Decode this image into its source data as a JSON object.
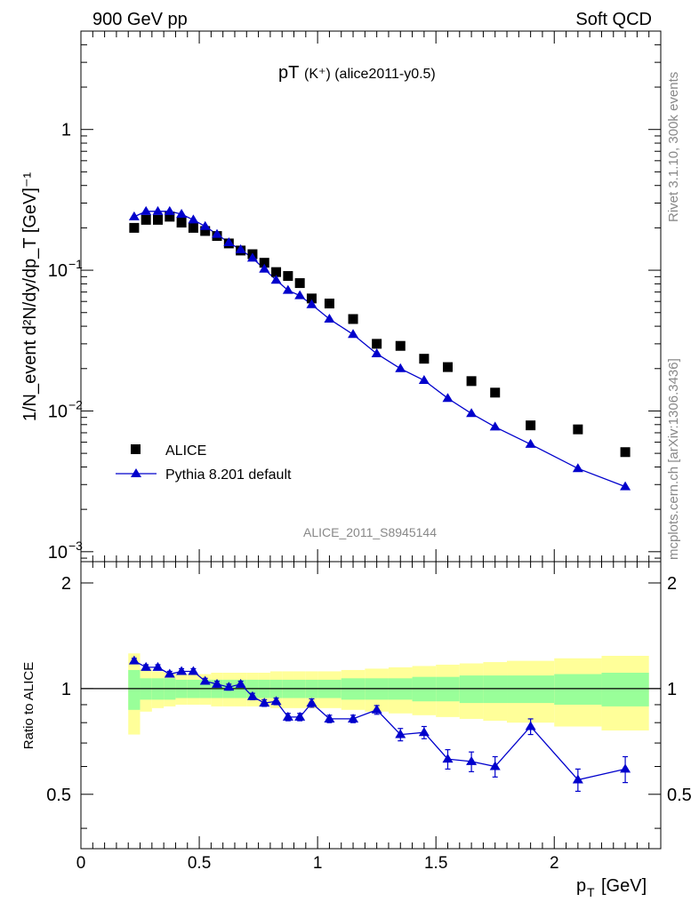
{
  "header": {
    "left": "900 GeV pp",
    "right": "Soft QCD"
  },
  "side_labels": {
    "rivet": "Rivet 3.1.10,  300k events",
    "mcplots": "mcplots.cern.ch [arXiv:1306.3436]"
  },
  "chart_data": [
    {
      "type": "scatter",
      "title_main": "pT",
      "title_sub": "(K⁺) (alice2011-y0.5)",
      "analysis_tag": "ALICE_2011_S8945144",
      "ylabel": "1/N_event d²N/dy/dp_T [GeV]⁻¹",
      "yscale": "log",
      "ylim": [
        0.00085,
        5.0
      ],
      "xlim": [
        0,
        2.45
      ],
      "yticks": [
        {
          "value": 0.001,
          "base": "10",
          "exp": "−3"
        },
        {
          "value": 0.01,
          "base": "10",
          "exp": "−2"
        },
        {
          "value": 0.1,
          "base": "10",
          "exp": "−1"
        },
        {
          "value": 1,
          "base": "1",
          "exp": ""
        }
      ],
      "legend": {
        "placement": "bottom-left",
        "entries": [
          {
            "label": "ALICE",
            "marker": "square",
            "color": "#000000"
          },
          {
            "label": "Pythia 8.201 default",
            "marker": "triangle-line",
            "color": "#0000cc"
          }
        ]
      },
      "series": [
        {
          "name": "ALICE",
          "x": [
            0.225,
            0.275,
            0.325,
            0.375,
            0.425,
            0.475,
            0.525,
            0.575,
            0.625,
            0.675,
            0.725,
            0.775,
            0.825,
            0.875,
            0.925,
            0.975,
            1.05,
            1.15,
            1.25,
            1.35,
            1.45,
            1.55,
            1.65,
            1.75,
            1.9,
            2.1,
            2.3
          ],
          "y": [
            0.2,
            0.228,
            0.228,
            0.24,
            0.218,
            0.2,
            0.19,
            0.175,
            0.155,
            0.138,
            0.13,
            0.113,
            0.097,
            0.091,
            0.081,
            0.063,
            0.058,
            0.045,
            0.03,
            0.029,
            0.0235,
            0.0205,
            0.0163,
            0.0135,
            0.0079,
            0.0074,
            0.0051
          ]
        },
        {
          "name": "Pythia 8.201 default",
          "x": [
            0.225,
            0.275,
            0.325,
            0.375,
            0.425,
            0.475,
            0.525,
            0.575,
            0.625,
            0.675,
            0.725,
            0.775,
            0.825,
            0.875,
            0.925,
            0.975,
            1.05,
            1.15,
            1.25,
            1.35,
            1.45,
            1.55,
            1.65,
            1.75,
            1.9,
            2.1,
            2.3
          ],
          "y": [
            0.24,
            0.262,
            0.262,
            0.262,
            0.25,
            0.228,
            0.205,
            0.18,
            0.157,
            0.14,
            0.122,
            0.102,
            0.085,
            0.072,
            0.066,
            0.057,
            0.045,
            0.035,
            0.0255,
            0.02,
            0.0165,
            0.0123,
            0.0096,
            0.0077,
            0.0058,
            0.0039,
            0.0029
          ]
        }
      ]
    },
    {
      "type": "line",
      "ylabel": "Ratio to ALICE",
      "xlabel_main": "p",
      "xlabel_sub": "T",
      "xlabel_unit": "[GeV]",
      "xlim": [
        0,
        2.45
      ],
      "ylim": [
        0.35,
        2.3
      ],
      "xticks": [
        {
          "value": 0,
          "label": "0"
        },
        {
          "value": 0.5,
          "label": "0.5"
        },
        {
          "value": 1,
          "label": "1"
        },
        {
          "value": 1.5,
          "label": "1.5"
        },
        {
          "value": 2,
          "label": "2"
        }
      ],
      "yticks": [
        {
          "value": 0.5,
          "label": "0.5"
        },
        {
          "value": 1,
          "label": "1"
        },
        {
          "value": 2,
          "label": "2"
        }
      ],
      "reference_line": 1,
      "bands": {
        "bin_edges": [
          0.2,
          0.25,
          0.3,
          0.35,
          0.4,
          0.45,
          0.5,
          0.55,
          0.6,
          0.65,
          0.7,
          0.75,
          0.8,
          0.85,
          0.9,
          0.95,
          1.0,
          1.1,
          1.2,
          1.3,
          1.4,
          1.5,
          1.6,
          1.7,
          1.8,
          2.0,
          2.2,
          2.4
        ],
        "inner_color": "#99ff99",
        "outer_color": "#ffff99",
        "inner_halfwidth": [
          0.13,
          0.07,
          0.07,
          0.07,
          0.06,
          0.06,
          0.06,
          0.06,
          0.06,
          0.06,
          0.06,
          0.06,
          0.06,
          0.06,
          0.06,
          0.06,
          0.06,
          0.07,
          0.07,
          0.07,
          0.08,
          0.08,
          0.09,
          0.09,
          0.09,
          0.1,
          0.11
        ],
        "outer_halfwidth": [
          0.26,
          0.14,
          0.12,
          0.11,
          0.1,
          0.1,
          0.1,
          0.11,
          0.11,
          0.11,
          0.11,
          0.11,
          0.12,
          0.12,
          0.12,
          0.12,
          0.12,
          0.13,
          0.14,
          0.15,
          0.16,
          0.17,
          0.18,
          0.19,
          0.2,
          0.22,
          0.24
        ]
      },
      "series": [
        {
          "name": "Pythia 8.201 default",
          "x": [
            0.225,
            0.275,
            0.325,
            0.375,
            0.425,
            0.475,
            0.525,
            0.575,
            0.625,
            0.675,
            0.725,
            0.775,
            0.825,
            0.875,
            0.925,
            0.975,
            1.05,
            1.15,
            1.25,
            1.35,
            1.45,
            1.55,
            1.65,
            1.75,
            1.9,
            2.1,
            2.3
          ],
          "y": [
            1.2,
            1.15,
            1.15,
            1.1,
            1.12,
            1.12,
            1.05,
            1.03,
            1.01,
            1.03,
            0.95,
            0.91,
            0.92,
            0.83,
            0.83,
            0.91,
            0.82,
            0.82,
            0.87,
            0.74,
            0.75,
            0.63,
            0.62,
            0.6,
            0.78,
            0.55,
            0.59
          ],
          "yerr": [
            0.02,
            0.02,
            0.02,
            0.02,
            0.02,
            0.02,
            0.02,
            0.02,
            0.02,
            0.02,
            0.02,
            0.02,
            0.02,
            0.02,
            0.02,
            0.025,
            0.02,
            0.02,
            0.025,
            0.03,
            0.03,
            0.04,
            0.04,
            0.04,
            0.04,
            0.04,
            0.05
          ]
        }
      ]
    }
  ]
}
